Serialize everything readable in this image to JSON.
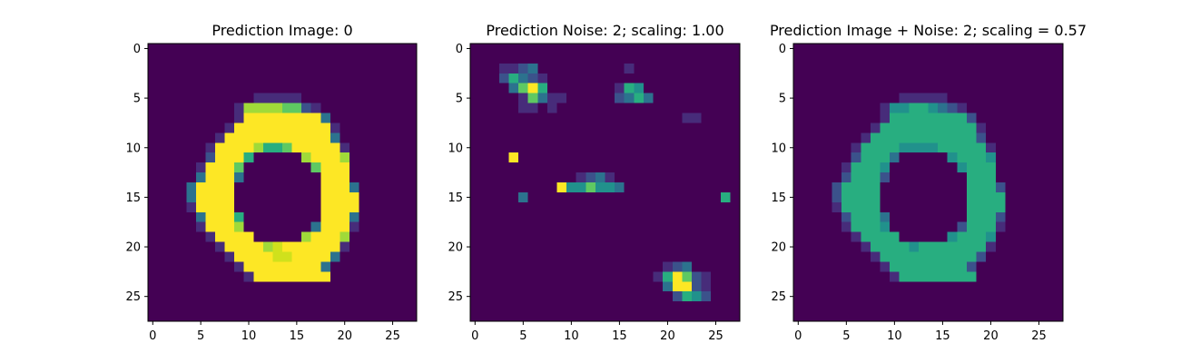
{
  "chart_data": [
    {
      "type": "heatmap",
      "title": "Prediction Image: 0",
      "colormap": "viridis",
      "xlim": [
        -0.5,
        27.5
      ],
      "ylim": [
        27.5,
        -0.5
      ],
      "xticks": [
        0,
        5,
        10,
        15,
        20,
        25
      ],
      "yticks": [
        0,
        5,
        10,
        15,
        20,
        25
      ],
      "values": [
        "0000000000000000000000000000",
        "0000000000000000000000000000",
        "0000000000000000000000000000",
        "0000000000000000000000000000",
        "0000000000000000000000000000",
        "0000000000011111000000000000",
        "0000000001777766210000000000",
        "0000000001999999993000000000",
        "0000000019999999999100000000",
        "0000000199999999999300000000",
        "0000001999975569999910000000",
        "0000002999500000799970000000",
        "0000019996000000069990000000",
        "0000039993000000009990000000",
        "0000399990000000009993000000",
        "0000399990000000009999000000",
        "0000199990000000009999000000",
        "0000039995000000009993000000",
        "0000019997000000039991000000",
        "0000001999900000799970000000",
        "0000000199997899999910000000",
        "0000000019999889999300000000",
        "0000000001999999993000000000",
        "0000000000199999999000000000",
        "0000000000000000000000000000",
        "0000000000000000000000000000",
        "0000000000000000000000000000",
        "0000000000000000000000000000"
      ]
    },
    {
      "type": "heatmap",
      "title": "Prediction Noise: 2; scaling: 1.00",
      "colormap": "viridis",
      "xlim": [
        -0.5,
        27.5
      ],
      "ylim": [
        27.5,
        -0.5
      ],
      "xticks": [
        0,
        5,
        10,
        15,
        20,
        25
      ],
      "yticks": [
        0,
        5,
        10,
        15,
        20,
        25
      ],
      "values": [
        "0000000000000000000000000000",
        "0000000000000000000000000000",
        "0001123000000000100000000000",
        "0002532100000000000000000000",
        "0000369500000001540000000000",
        "0000016311000002353000000000",
        "0000011010000000000000000000",
        "0000000000000000000000110000",
        "0000000000000000000000000000",
        "0000000000000000000000000000",
        "0000000000000000000000000000",
        "0000900000000000000000000000",
        "0000000000000000000000000000",
        "0000000000012310000000000000",
        "0000000009446443000000000000",
        "0000030000000000000000000050",
        "0000000000000000000000000000",
        "0000000000000000000000000000",
        "0000000000000000000000000000",
        "0000000000000000000000000000",
        "0000000000000000000000000000",
        "0000000000000000000000000000",
        "0000000000000000000012300000",
        "0000000000000000000159621000",
        "0000000000000000000039921000",
        "0000000000000000000002542000",
        "0000000000000000000000000000",
        "0000000000000000000000000000"
      ]
    },
    {
      "type": "heatmap",
      "title": "Prediction Image + Noise: 2; scaling = 0.57",
      "colormap": "viridis",
      "xlim": [
        -0.5,
        27.5
      ],
      "ylim": [
        27.5,
        -0.5
      ],
      "xticks": [
        0,
        5,
        10,
        15,
        20,
        25
      ],
      "yticks": [
        0,
        5,
        10,
        15,
        20,
        25
      ],
      "values": [
        "0000000000000000000000000000",
        "0000000000000000000000000000",
        "0000000000000000000000000000",
        "0000000000000000000000000000",
        "0000000000000000000000000000",
        "0000000000011111000000000000",
        "0000000001445543210000000000",
        "0000000001555555552000000000",
        "0000000015555555555100000000",
        "0000000155555555555200000000",
        "0000001555544445555510000000",
        "0000002555300000455540000000",
        "0000015554000000045550000000",
        "0000025552000000005550000000",
        "0000255550000000005552000000",
        "0000255550000000005555000000",
        "0000155550000000005555000000",
        "0000025553000000005552000000",
        "0000015554000000025551000000",
        "0000001555500000455540000000",
        "0000000155554555555510000000",
        "0000000015555555555200000000",
        "0000000001555555552000000000",
        "0000000000155555555000000000",
        "0000000000000000000000000000",
        "0000000000000000000000000000",
        "0000000000000000000000000000",
        "0000000000000000000000000000"
      ]
    }
  ]
}
